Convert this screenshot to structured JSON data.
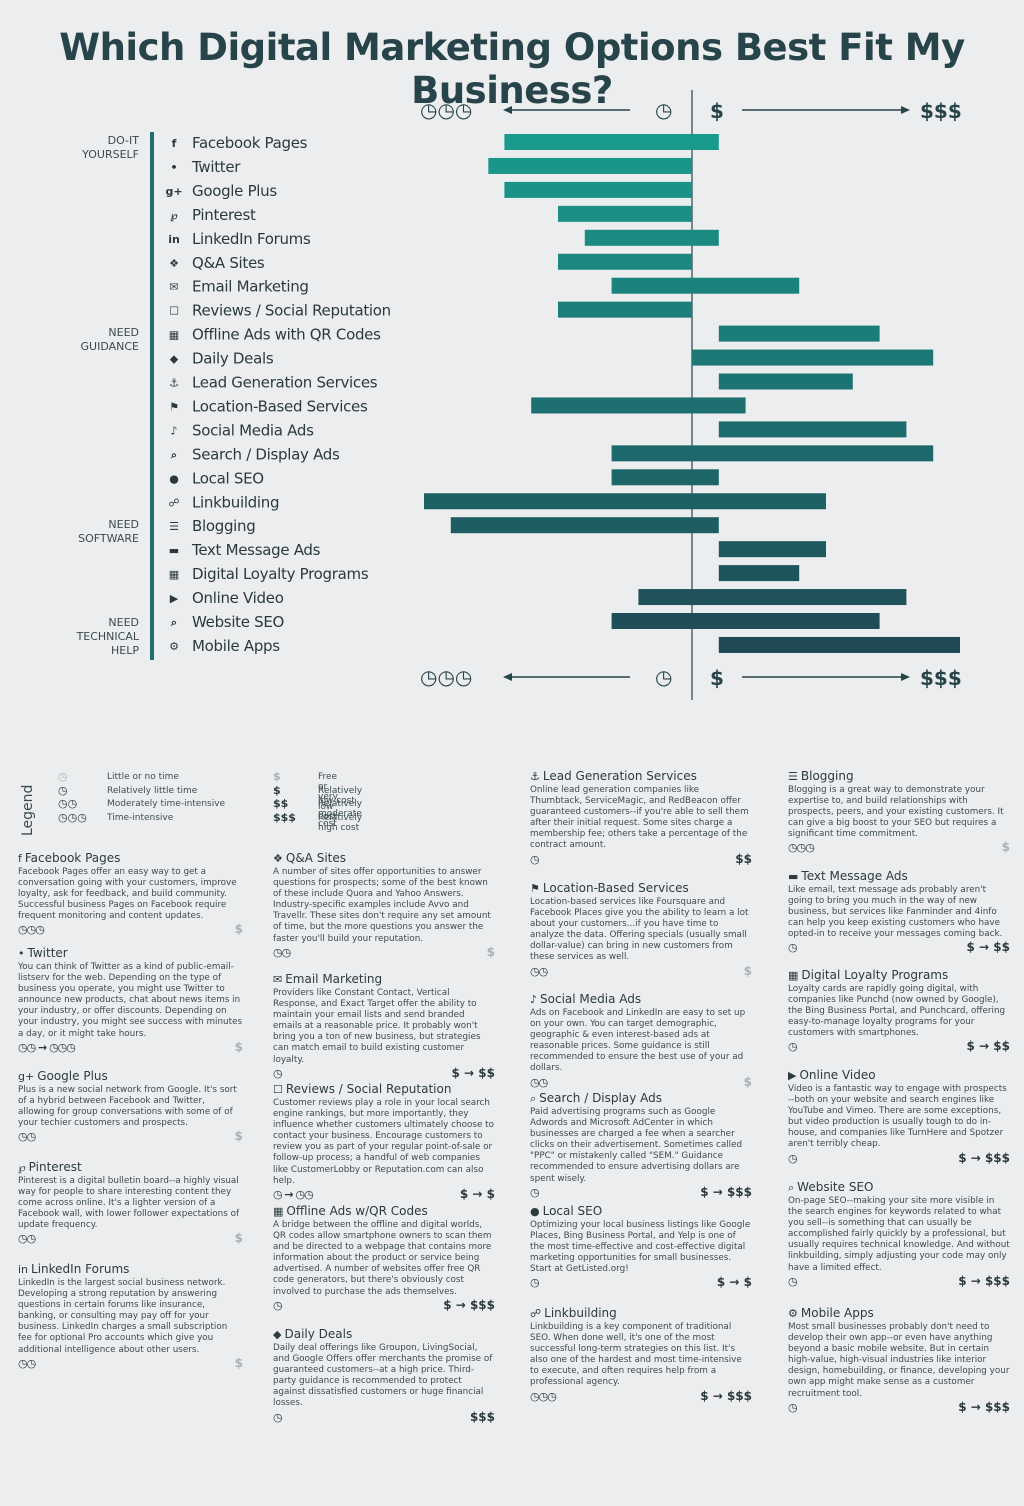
{
  "title": "Which Digital Marketing Options Best Fit My Business?",
  "chart_data": {
    "type": "bar",
    "orientation": "horizontal-diverging",
    "axis_left": {
      "label_icons": "◷◷◷",
      "meaning": "time"
    },
    "axis_right": {
      "start_label": "$",
      "end_label": "$$$",
      "meaning": "cost"
    },
    "axis_left_near": "◷",
    "groups": [
      {
        "label": "DO-IT\nYOURSELF",
        "start_row": 0
      },
      {
        "label": "NEED\nGUIDANCE",
        "start_row": 8
      },
      {
        "label": "NEED\nSOFTWARE",
        "start_row": 16
      },
      {
        "label": "NEED\nTECHNICAL\nHELP",
        "start_row": 20
      }
    ],
    "units_note": "time: 0 = none, 10 = time-intensive; cost: 0 = free, 10 = high",
    "categories": [
      "Facebook Pages",
      "Twitter",
      "Google Plus",
      "Pinterest",
      "LinkedIn Forums",
      "Q&A Sites",
      "Email Marketing",
      "Reviews / Social Reputation",
      "Offline Ads with QR Codes",
      "Daily Deals",
      "Lead Generation Services",
      "Location-Based Services",
      "Social Media Ads",
      "Search / Display Ads",
      "Local SEO",
      "Linkbuilding",
      "Blogging",
      "Text Message Ads",
      "Digital Loyalty Programs",
      "Online Video",
      "Website SEO",
      "Mobile Apps"
    ],
    "icons": [
      "f",
      "•",
      "g+",
      "℘",
      "in",
      "❖",
      "✉",
      "☐",
      "▦",
      "◆",
      "⚓",
      "⚑",
      "♪",
      "⌕",
      "●",
      "☍",
      "☰",
      "▬",
      "▦",
      "▶",
      "⌕",
      "⚙"
    ],
    "series": [
      {
        "name": "time",
        "values": [
          7,
          7.6,
          7,
          5,
          4,
          5,
          3,
          5,
          -1,
          0,
          -1,
          6,
          -1,
          3,
          3,
          10,
          9,
          -1,
          -1,
          2,
          3,
          -1
        ]
      },
      {
        "name": "cost",
        "values": [
          1,
          0,
          0,
          0,
          1,
          0,
          4,
          0,
          7,
          9,
          6,
          2,
          8,
          9,
          1,
          5,
          1,
          5,
          4,
          8,
          7,
          10
        ]
      }
    ],
    "grid": false,
    "legend": "bottom-left"
  },
  "legend": {
    "title": "Legend",
    "time": [
      {
        "sym": "◷",
        "text": "Little or no time"
      },
      {
        "sym": "◷",
        "text": "Relatively little time"
      },
      {
        "sym": "◷◷",
        "text": "Moderately time-intensive"
      },
      {
        "sym": "◷◷◷",
        "text": "Time-intensive"
      }
    ],
    "cost": [
      {
        "sym": "$",
        "text": "Free or very low cost"
      },
      {
        "sym": "$",
        "text": "Relatively low cost"
      },
      {
        "sym": "$$",
        "text": "Relatively moderate cost"
      },
      {
        "sym": "$$$",
        "text": "Relatively high cost"
      }
    ]
  },
  "cards": [
    {
      "icon": "f",
      "title": "Facebook Pages",
      "desc": "Facebook Pages offer an easy way to get a conversation going with your customers, improve loyalty, ask for feedback, and build community. Successful business Pages on Facebook require frequent monitoring and content updates.",
      "time": "◷◷◷",
      "cost": "$"
    },
    {
      "icon": "•",
      "title": "Twitter",
      "desc": "You can think of Twitter as a kind of public-email-listserv for the web. Depending on the type of business you operate, you might use Twitter to announce new products, chat about news items in your industry, or offer discounts. Depending on your industry, you might see success with minutes a day, or it might take hours.",
      "time": "◷◷ → ◷◷◷",
      "cost": "$"
    },
    {
      "icon": "g+",
      "title": "Google Plus",
      "desc": "Plus is a new social network from Google. It's sort of a hybrid between Facebook and Twitter, allowing for group conversations with some of of your techier customers and prospects.",
      "time": "◷◷",
      "cost": "$"
    },
    {
      "icon": "℘",
      "title": "Pinterest",
      "desc": "Pinterest is a digital bulletin board--a highly visual way for people to share interesting content they come across online. It's a lighter version of a Facebook wall, with lower follower expectations of update frequency.",
      "time": "◷◷",
      "cost": "$"
    },
    {
      "icon": "in",
      "title": "LinkedIn Forums",
      "desc": "LinkedIn is the largest social business network. Developing a strong reputation by answering questions in certain forums like insurance, banking, or consulting may pay off for your business. LinkedIn charges a small subscription fee for optional Pro accounts which give you additional intelligence about other users.",
      "time": "◷◷",
      "cost": "$"
    },
    {
      "icon": "❖",
      "title": "Q&A Sites",
      "desc": "A number of sites offer opportunities to answer questions for prospects; some of the best known of these include Quora and Yahoo Answers. Industry-specific examples include Avvo and Travellr. These sites don't require any set amount of time, but the more questions you answer the faster you'll build your reputation.",
      "time": "◷◷",
      "cost": "$"
    },
    {
      "icon": "✉",
      "title": "Email Marketing",
      "desc": "Providers like Constant Contact, Vertical Response, and Exact Target offer the ability to maintain your email lists and send branded emails at a reasonable price. It probably won't bring you a ton of new business, but strategies can match email to build existing customer loyalty.",
      "time": "◷",
      "cost": "$ → $$"
    },
    {
      "icon": "☐",
      "title": "Reviews / Social Reputation",
      "desc": "Customer reviews play a role in your local search engine rankings, but more importantly, they influence whether customers ultimately choose to contact your business. Encourage customers to review you as part of your regular point-of-sale or follow-up process; a handful of web companies like CustomerLobby or Reputation.com can also help.",
      "time": "◷ → ◷◷",
      "cost": "$ → $"
    },
    {
      "icon": "▦",
      "title": "Offline Ads w/QR Codes",
      "desc": "A bridge between the offline and digital worlds, QR codes allow smartphone owners to scan them and be directed to a webpage that contains more information about the product or service being advertised. A number of websites offer free QR code generators, but there's obviously cost involved to purchase the ads themselves.",
      "time": "◷",
      "cost": "$ → $$$"
    },
    {
      "icon": "◆",
      "title": "Daily Deals",
      "desc": "Daily deal offerings like Groupon, LivingSocial, and Google Offers offer merchants the promise of guaranteed customers--at a high price. Third-party guidance is recommended to protect against dissatisfied customers or huge financial losses.",
      "time": "◷",
      "cost": "$$$"
    },
    {
      "icon": "⚓",
      "title": "Lead Generation Services",
      "desc": "Online lead generation companies like Thumbtack, ServiceMagic, and RedBeacon offer guaranteed customers--if you're able to sell them after their initial request. Some sites charge a membership fee; others take a percentage of the contract amount.",
      "time": "◷",
      "cost": "$$"
    },
    {
      "icon": "⚑",
      "title": "Location-Based Services",
      "desc": "Location-based services like Foursquare and Facebook Places give you the ability to learn a lot about your customers...if you have time to analyze the data. Offering specials (usually small dollar-value) can bring in new customers from these services as well.",
      "time": "◷◷",
      "cost": "$"
    },
    {
      "icon": "♪",
      "title": "Social Media Ads",
      "desc": "Ads on Facebook and LinkedIn are easy to set up on your own. You can target demographic, geographic & even interest-based ads at reasonable prices. Some guidance is still recommended to ensure the best use of your ad dollars.",
      "time": "◷◷",
      "cost": "$"
    },
    {
      "icon": "⌕",
      "title": "Search / Display Ads",
      "desc": "Paid advertising programs such as Google Adwords and Microsoft AdCenter in which businesses are charged a fee when a searcher clicks on their advertisement. Sometimes called \"PPC\" or mistakenly called \"SEM.\" Guidance recommended to ensure advertising dollars are spent wisely.",
      "time": "◷",
      "cost": "$ → $$$"
    },
    {
      "icon": "●",
      "title": "Local SEO",
      "desc": "Optimizing your local business listings like Google Places, Bing Business Portal, and Yelp is one of the most time-effective and cost-effective digital marketing opportunities for small businesses. Start at GetListed.org!",
      "time": "◷",
      "cost": "$ → $"
    },
    {
      "icon": "☍",
      "title": "Linkbuilding",
      "desc": "Linkbuilding is a key component of traditional SEO. When done well, it's one of the most successful long-term strategies on this list. It's also one of the hardest and most time-intensive to execute, and often requires help from a professional agency.",
      "time": "◷◷◷",
      "cost": "$ → $$$"
    },
    {
      "icon": "☰",
      "title": "Blogging",
      "desc": "Blogging is a great way to demonstrate your expertise to, and build relationships with prospects, peers, and your existing customers. It can give a big boost to your SEO but requires a significant time commitment.",
      "time": "◷◷◷",
      "cost": "$"
    },
    {
      "icon": "▬",
      "title": "Text Message Ads",
      "desc": "Like email, text message ads probably aren't going to bring you much in the way of new business, but services like Fanminder and 4info can help you keep existing customers who have opted-in to receive your messages coming back.",
      "time": "◷",
      "cost": "$ → $$"
    },
    {
      "icon": "▦",
      "title": "Digital Loyalty Programs",
      "desc": "Loyalty cards are rapidly going digital, with companies like Punchd (now owned by Google), the Bing Business Portal, and Punchcard, offering easy-to-manage loyalty programs for your customers with smartphones.",
      "time": "◷",
      "cost": "$ → $$"
    },
    {
      "icon": "▶",
      "title": "Online Video",
      "desc": "Video is a fantastic way to engage with prospects --both on your website and search engines like YouTube and Vimeo. There are some exceptions, but video production is usually tough to do in-house, and companies like TurnHere and Spotzer aren't terribly cheap.",
      "time": "◷",
      "cost": "$ → $$$"
    },
    {
      "icon": "⌕",
      "title": "Website SEO",
      "desc": "On-page SEO--making your site more visible in the search engines for keywords related to what you sell--is something that can usually be accomplished fairly quickly by a professional, but usually requires technical knowledge. And without linkbuilding, simply adjusting your code may only have a limited effect.",
      "time": "◷",
      "cost": "$ → $$$"
    },
    {
      "icon": "⚙",
      "title": "Mobile Apps",
      "desc": "Most small businesses probably don't need to develop their own app--or even have anything beyond a basic mobile website. But in certain high-value, high-visual industries like interior design, homebuilding, or finance, developing your own app might make sense as a customer recruitment tool.",
      "time": "◷",
      "cost": "$ → $$$"
    }
  ],
  "colors": {
    "bar_top": "#1a9a8c",
    "bar_bottom": "#1f4a55",
    "text": "#2a3a3c",
    "bg": "#ecedee"
  }
}
